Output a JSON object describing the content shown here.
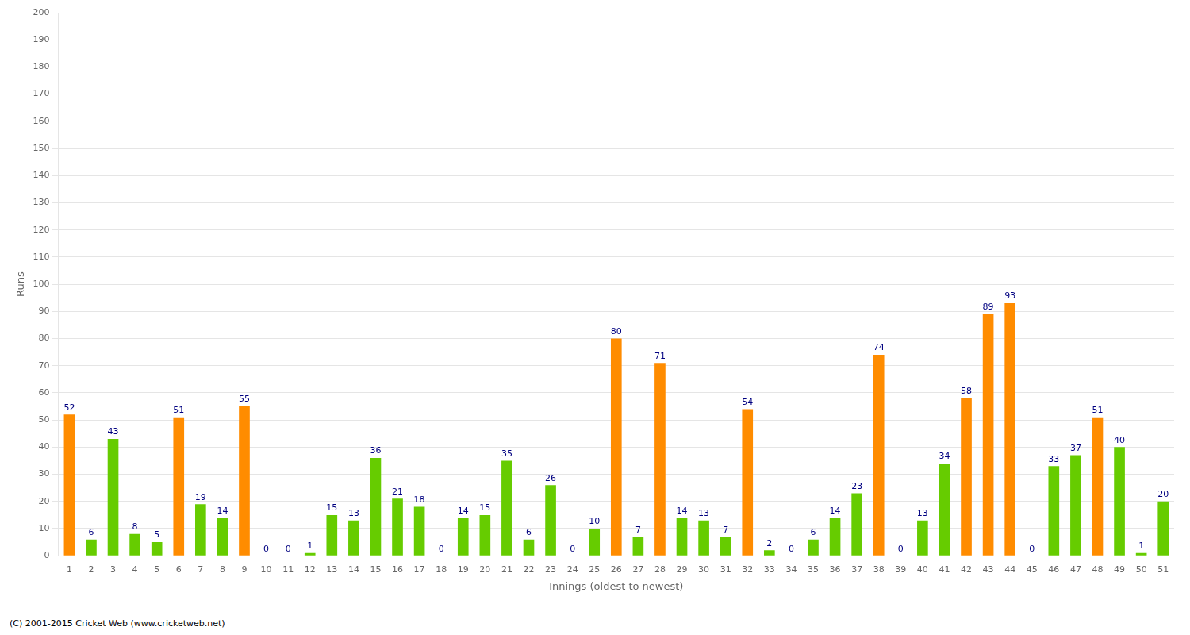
{
  "chart_data": {
    "type": "bar",
    "categories": [
      1,
      2,
      3,
      4,
      5,
      6,
      7,
      8,
      9,
      10,
      11,
      12,
      13,
      14,
      15,
      16,
      17,
      18,
      19,
      20,
      21,
      22,
      23,
      24,
      25,
      26,
      27,
      28,
      29,
      30,
      31,
      32,
      33,
      34,
      35,
      36,
      37,
      38,
      39,
      40,
      41,
      42,
      43,
      44,
      45,
      46,
      47,
      48,
      49,
      50,
      51
    ],
    "values": [
      52,
      6,
      43,
      8,
      5,
      51,
      19,
      14,
      55,
      0,
      0,
      1,
      15,
      13,
      36,
      21,
      18,
      0,
      14,
      15,
      35,
      6,
      26,
      0,
      10,
      80,
      7,
      71,
      14,
      13,
      7,
      54,
      2,
      0,
      6,
      14,
      23,
      74,
      0,
      13,
      34,
      58,
      89,
      93,
      0,
      33,
      37,
      51,
      40,
      1,
      20
    ],
    "colors": [
      "#ff8c00",
      "#66cc00",
      "#66cc00",
      "#66cc00",
      "#66cc00",
      "#ff8c00",
      "#66cc00",
      "#66cc00",
      "#ff8c00",
      "#66cc00",
      "#66cc00",
      "#66cc00",
      "#66cc00",
      "#66cc00",
      "#66cc00",
      "#66cc00",
      "#66cc00",
      "#66cc00",
      "#66cc00",
      "#66cc00",
      "#66cc00",
      "#66cc00",
      "#66cc00",
      "#66cc00",
      "#66cc00",
      "#ff8c00",
      "#66cc00",
      "#ff8c00",
      "#66cc00",
      "#66cc00",
      "#66cc00",
      "#ff8c00",
      "#66cc00",
      "#66cc00",
      "#66cc00",
      "#66cc00",
      "#66cc00",
      "#ff8c00",
      "#66cc00",
      "#66cc00",
      "#66cc00",
      "#ff8c00",
      "#ff8c00",
      "#ff8c00",
      "#66cc00",
      "#66cc00",
      "#66cc00",
      "#ff8c00",
      "#66cc00",
      "#66cc00",
      "#66cc00"
    ],
    "xlabel": "Innings (oldest to newest)",
    "ylabel": "Runs",
    "ylim": [
      0,
      200
    ],
    "yticks": [
      0,
      10,
      20,
      30,
      40,
      50,
      60,
      70,
      80,
      90,
      100,
      110,
      120,
      130,
      140,
      150,
      160,
      170,
      180,
      190,
      200
    ],
    "grid": true,
    "data_labels": true,
    "annotations": [
      "(C) 2001-2015 Cricket Web (www.cricketweb.net)"
    ]
  }
}
